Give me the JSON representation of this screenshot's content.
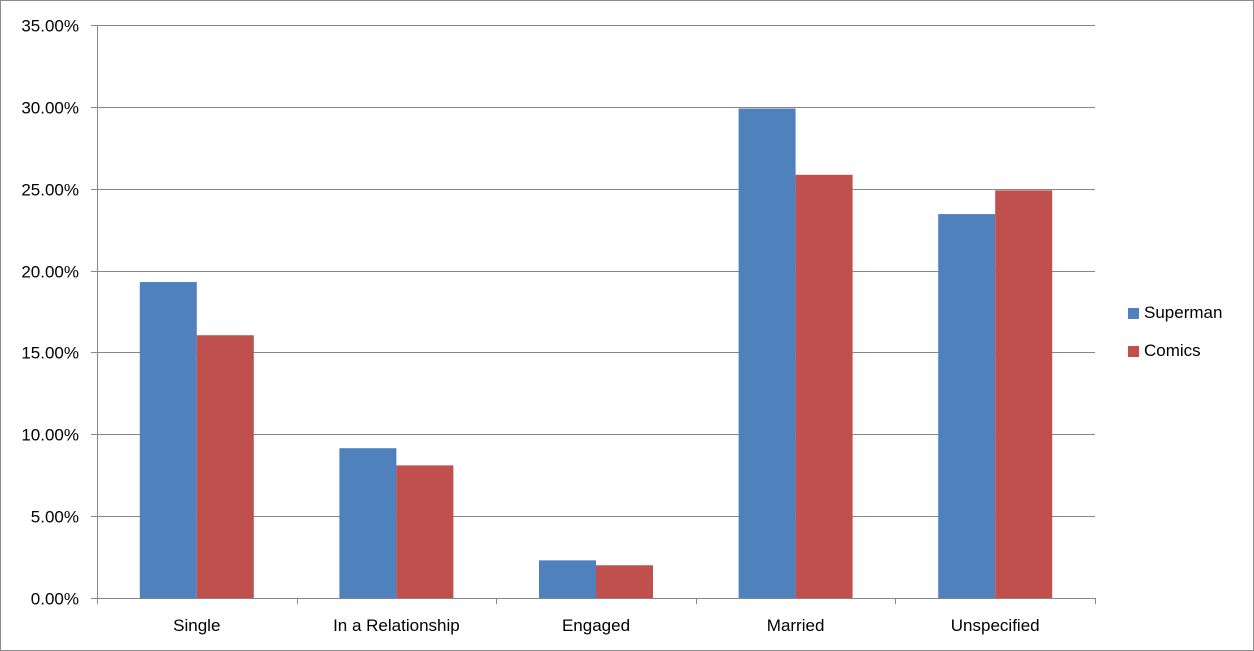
{
  "chart_data": {
    "type": "bar",
    "title": "",
    "xlabel": "",
    "ylabel": "",
    "categories": [
      "Single",
      "In a Relationship",
      "Engaged",
      "Married",
      "Unspecified"
    ],
    "series": [
      {
        "name": "Superman",
        "color": "#4f81bd",
        "values": [
          19.3,
          9.15,
          2.3,
          29.9,
          23.45
        ]
      },
      {
        "name": "Comics",
        "color": "#c0504d",
        "values": [
          16.05,
          8.1,
          2.0,
          25.85,
          24.9
        ]
      }
    ],
    "ylim": [
      0,
      35
    ],
    "yticks": [
      0,
      5,
      10,
      15,
      20,
      25,
      30,
      35
    ],
    "ytick_labels": [
      "0.00%",
      "5.00%",
      "10.00%",
      "15.00%",
      "20.00%",
      "25.00%",
      "30.00%",
      "35.00%"
    ],
    "grid": true,
    "legend_position": "right"
  }
}
